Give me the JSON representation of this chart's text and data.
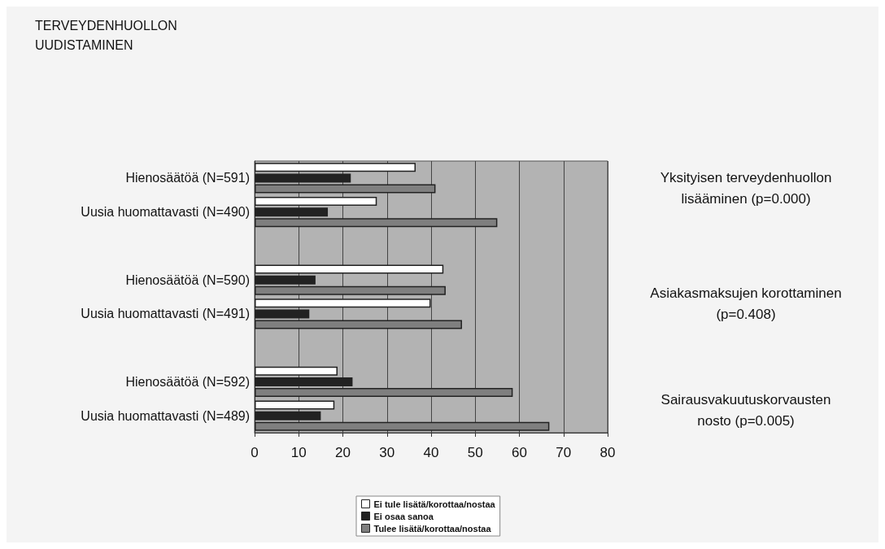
{
  "chart_data": {
    "type": "bar",
    "orientation": "horizontal",
    "title": "TERVEYDENHUOLLON\nUUDISTAMINEN",
    "categories": [
      "Hienosäätöä (N=591)",
      "Uusia huomattavasti (N=490)",
      null,
      "Hienosäätöä (N=590)",
      "Uusia huomattavasti (N=491)",
      null,
      "Hienosäätöä (N=592)",
      "Uusia huomattavasti (N=489)"
    ],
    "series": [
      {
        "name": "Ei tule lisätä/korottaa/nostaa",
        "color": "#ffffff",
        "values": [
          36.5,
          27.7,
          null,
          42.8,
          39.9,
          null,
          18.8,
          18.1
        ]
      },
      {
        "name": "Ei osaa sanoa",
        "color": "#222222",
        "values": [
          21.8,
          16.6,
          null,
          13.8,
          12.4,
          null,
          22.2,
          15.0
        ]
      },
      {
        "name": "Tulee lisätä/korottaa/nostaa",
        "color": "#7f7f7f",
        "values": [
          41.0,
          55.0,
          null,
          43.3,
          47.0,
          null,
          58.5,
          66.8
        ]
      }
    ],
    "xlim": [
      0,
      80
    ],
    "xticks": [
      0,
      10,
      20,
      30,
      40,
      50,
      60,
      70,
      80
    ],
    "grid": "x",
    "legend": "bottom",
    "annotations": [
      "Yksityisen terveydenhuollon\nlisääminen (p=0.000)",
      "Asiakasmaksujen korottaminen\n(p=0.408)",
      "Sairausvakuutuskorvausten\nnosto (p=0.005)"
    ]
  }
}
